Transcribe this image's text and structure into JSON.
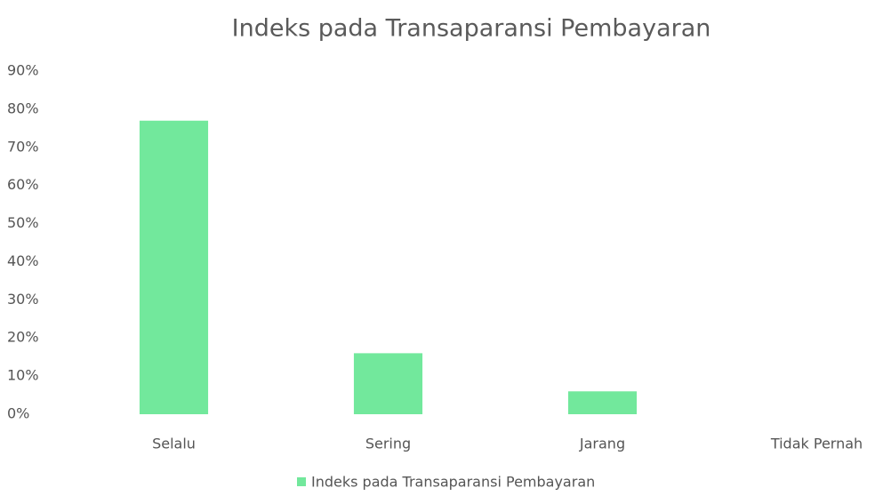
{
  "chart_data": {
    "type": "bar",
    "title": "Indeks pada Transaparansi Pembayaran",
    "categories": [
      "Selalu",
      "Sering",
      "Jarang",
      "Tidak Pernah"
    ],
    "series": [
      {
        "name": "Indeks pada Transaparansi Pembayaran",
        "color": "#72e89c",
        "values": [
          77,
          16,
          6,
          0
        ]
      }
    ],
    "ylim": [
      0,
      90
    ],
    "yticks": [
      {
        "value": 0,
        "label": "0%"
      },
      {
        "value": 10,
        "label": "10%"
      },
      {
        "value": 20,
        "label": "20%"
      },
      {
        "value": 30,
        "label": "30%"
      },
      {
        "value": 40,
        "label": "40%"
      },
      {
        "value": 50,
        "label": "50%"
      },
      {
        "value": 60,
        "label": "60%"
      },
      {
        "value": 70,
        "label": "70%"
      },
      {
        "value": 80,
        "label": "80%"
      },
      {
        "value": 90,
        "label": "90%"
      }
    ],
    "grid": false,
    "legend": "bottom"
  }
}
